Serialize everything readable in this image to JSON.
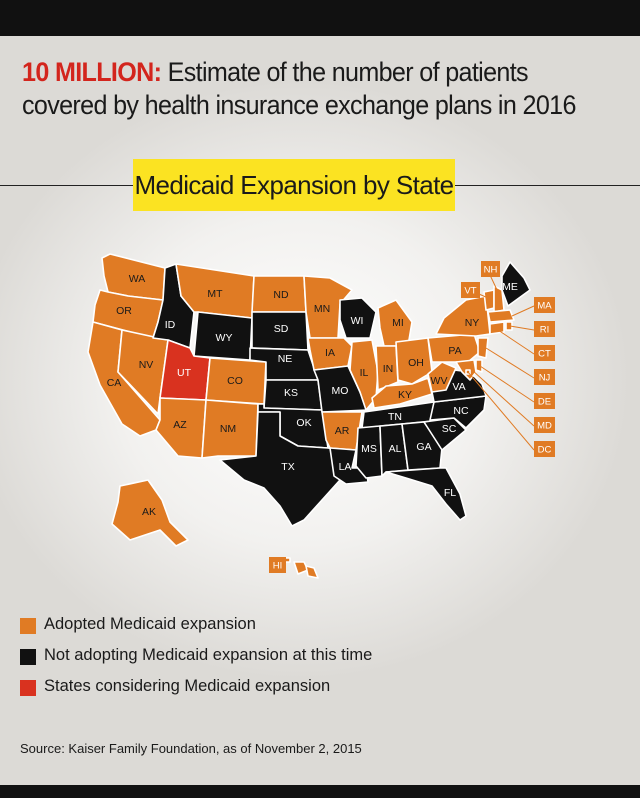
{
  "headline": {
    "number": "10 MILLION:",
    "text": "Estimate of the number of patients covered by health insurance exchange plans in 2016"
  },
  "map_title": "Medicaid Expansion by State",
  "colors": {
    "adopted": "#e07b24",
    "not_adopting": "#111111",
    "considering": "#d9321f",
    "title_highlight": "#fbe322"
  },
  "states": {
    "WA": "adopted",
    "OR": "adopted",
    "CA": "adopted",
    "NV": "adopted",
    "ID": "not_adopting",
    "MT": "adopted",
    "WY": "not_adopting",
    "UT": "considering",
    "AZ": "adopted",
    "CO": "adopted",
    "NM": "adopted",
    "ND": "adopted",
    "SD": "not_adopting",
    "NE": "not_adopting",
    "KS": "not_adopting",
    "OK": "not_adopting",
    "TX": "not_adopting",
    "MN": "adopted",
    "IA": "adopted",
    "MO": "not_adopting",
    "AR": "adopted",
    "LA": "not_adopting",
    "WI": "not_adopting",
    "IL": "adopted",
    "MI": "adopted",
    "IN": "adopted",
    "OH": "adopted",
    "KY": "adopted",
    "TN": "not_adopting",
    "MS": "not_adopting",
    "AL": "not_adopting",
    "GA": "not_adopting",
    "FL": "not_adopting",
    "SC": "not_adopting",
    "NC": "not_adopting",
    "VA": "not_adopting",
    "WV": "adopted",
    "PA": "adopted",
    "NY": "adopted",
    "ME": "not_adopting",
    "AK": "adopted",
    "HI": "adopted",
    "VT": "adopted",
    "NH": "adopted",
    "MA": "adopted",
    "RI": "adopted",
    "CT": "adopted",
    "NJ": "adopted",
    "DE": "adopted",
    "MD": "adopted",
    "DC": "adopted"
  },
  "state_labels": [
    "WA",
    "OR",
    "CA",
    "NV",
    "ID",
    "MT",
    "WY",
    "UT",
    "AZ",
    "CO",
    "NM",
    "ND",
    "SD",
    "NE",
    "KS",
    "OK",
    "TX",
    "MN",
    "IA",
    "MO",
    "AR",
    "LA",
    "WI",
    "IL",
    "MI",
    "IN",
    "OH",
    "KY",
    "TN",
    "MS",
    "AL",
    "GA",
    "FL",
    "SC",
    "NC",
    "VA",
    "WV",
    "PA",
    "NY",
    "ME",
    "AK"
  ],
  "callout_labels": [
    "NH",
    "VT",
    "MA",
    "RI",
    "CT",
    "NJ",
    "DE",
    "MD",
    "DC",
    "HI"
  ],
  "legend": [
    {
      "key": "adopted",
      "label": "Adopted Medicaid expansion"
    },
    {
      "key": "not_adopting",
      "label": "Not adopting Medicaid expansion at this time"
    },
    {
      "key": "considering",
      "label": "States considering Medicaid expansion"
    }
  ],
  "source": "Source: Kaiser Family Foundation, as of November 2, 2015"
}
